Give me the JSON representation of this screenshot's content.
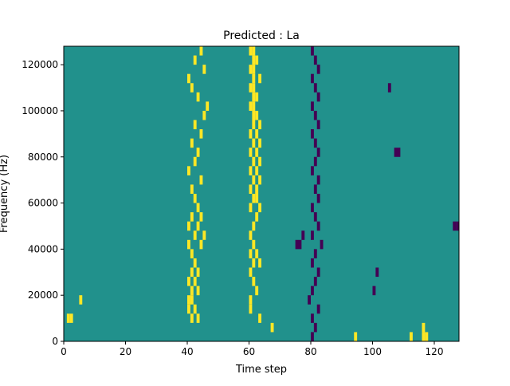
{
  "chart_data": {
    "type": "heatmap",
    "title": "Predicted : La",
    "xlabel": "Time step",
    "ylabel": "Frequency (Hz)",
    "xlim": [
      0,
      128
    ],
    "ylim": [
      0,
      128000
    ],
    "x_ticks": [
      0,
      20,
      40,
      60,
      80,
      100,
      120
    ],
    "y_ticks": [
      0,
      20000,
      40000,
      60000,
      80000,
      100000,
      120000
    ],
    "x_tick_labels": [
      "0",
      "20",
      "40",
      "60",
      "80",
      "100",
      "120"
    ],
    "y_tick_labels": [
      "0",
      "20000",
      "40000",
      "60000",
      "80000",
      "100000",
      "120000"
    ],
    "grid": false,
    "n_time_steps": 128,
    "n_freq_bins": 32,
    "bin_height_hz": 4000,
    "values_legend": {
      "low": -1,
      "background": 0,
      "high": 1
    },
    "colors": {
      "low": "#440154",
      "background": "#21918c",
      "high": "#fde725"
    },
    "cells": [
      {
        "t": 116,
        "f": 0,
        "v": 1
      },
      {
        "t": 94,
        "f": 0,
        "v": 1
      },
      {
        "t": 112,
        "f": 0,
        "v": 1
      },
      {
        "t": 117,
        "f": 0,
        "v": 1
      },
      {
        "t": 116,
        "f": 1,
        "v": 1
      },
      {
        "t": 67,
        "f": 1,
        "v": 1
      },
      {
        "t": 41,
        "f": 2,
        "v": 1
      },
      {
        "t": 43,
        "f": 2,
        "v": 1
      },
      {
        "t": 63,
        "f": 2,
        "v": 1
      },
      {
        "t": 1,
        "f": 2,
        "v": 1
      },
      {
        "t": 2,
        "f": 2,
        "v": 1
      },
      {
        "t": 40,
        "f": 3,
        "v": 1
      },
      {
        "t": 42,
        "f": 3,
        "v": 1
      },
      {
        "t": 60,
        "f": 3,
        "v": 1
      },
      {
        "t": 5,
        "f": 4,
        "v": 1
      },
      {
        "t": 40,
        "f": 4,
        "v": 1
      },
      {
        "t": 41,
        "f": 4,
        "v": 1
      },
      {
        "t": 60,
        "f": 4,
        "v": 1
      },
      {
        "t": 62,
        "f": 5,
        "v": 1
      },
      {
        "t": 41,
        "f": 5,
        "v": 1
      },
      {
        "t": 43,
        "f": 5,
        "v": 1
      },
      {
        "t": 40,
        "f": 6,
        "v": 1
      },
      {
        "t": 42,
        "f": 6,
        "v": 1
      },
      {
        "t": 61,
        "f": 6,
        "v": 1
      },
      {
        "t": 41,
        "f": 7,
        "v": 1
      },
      {
        "t": 43,
        "f": 7,
        "v": 1
      },
      {
        "t": 60,
        "f": 7,
        "v": 1
      },
      {
        "t": 61,
        "f": 8,
        "v": 1
      },
      {
        "t": 63,
        "f": 8,
        "v": 1
      },
      {
        "t": 42,
        "f": 8,
        "v": 1
      },
      {
        "t": 60,
        "f": 9,
        "v": 1
      },
      {
        "t": 62,
        "f": 9,
        "v": 1
      },
      {
        "t": 41,
        "f": 9,
        "v": 1
      },
      {
        "t": 44,
        "f": 10,
        "v": 1
      },
      {
        "t": 40,
        "f": 10,
        "v": 1
      },
      {
        "t": 61,
        "f": 10,
        "v": 1
      },
      {
        "t": 42,
        "f": 11,
        "v": 1
      },
      {
        "t": 45,
        "f": 11,
        "v": 1
      },
      {
        "t": 60,
        "f": 11,
        "v": 1
      },
      {
        "t": 40,
        "f": 12,
        "v": 1
      },
      {
        "t": 43,
        "f": 12,
        "v": 1
      },
      {
        "t": 61,
        "f": 12,
        "v": 1
      },
      {
        "t": 41,
        "f": 13,
        "v": 1
      },
      {
        "t": 44,
        "f": 13,
        "v": 1
      },
      {
        "t": 62,
        "f": 13,
        "v": 1
      },
      {
        "t": 43,
        "f": 14,
        "v": 1
      },
      {
        "t": 60,
        "f": 14,
        "v": 1
      },
      {
        "t": 63,
        "f": 14,
        "v": 1
      },
      {
        "t": 42,
        "f": 15,
        "v": 1
      },
      {
        "t": 61,
        "f": 15,
        "v": 1
      },
      {
        "t": 62,
        "f": 15,
        "v": 1
      },
      {
        "t": 60,
        "f": 16,
        "v": 1
      },
      {
        "t": 62,
        "f": 16,
        "v": 1
      },
      {
        "t": 41,
        "f": 16,
        "v": 1
      },
      {
        "t": 61,
        "f": 17,
        "v": 1
      },
      {
        "t": 63,
        "f": 17,
        "v": 1
      },
      {
        "t": 44,
        "f": 17,
        "v": 1
      },
      {
        "t": 60,
        "f": 18,
        "v": 1
      },
      {
        "t": 62,
        "f": 18,
        "v": 1
      },
      {
        "t": 40,
        "f": 18,
        "v": 1
      },
      {
        "t": 61,
        "f": 19,
        "v": 1
      },
      {
        "t": 63,
        "f": 19,
        "v": 1
      },
      {
        "t": 42,
        "f": 19,
        "v": 1
      },
      {
        "t": 60,
        "f": 20,
        "v": 1
      },
      {
        "t": 62,
        "f": 20,
        "v": 1
      },
      {
        "t": 43,
        "f": 20,
        "v": 1
      },
      {
        "t": 61,
        "f": 21,
        "v": 1
      },
      {
        "t": 63,
        "f": 21,
        "v": 1
      },
      {
        "t": 41,
        "f": 21,
        "v": 1
      },
      {
        "t": 60,
        "f": 22,
        "v": 1
      },
      {
        "t": 62,
        "f": 22,
        "v": 1
      },
      {
        "t": 44,
        "f": 22,
        "v": 1
      },
      {
        "t": 61,
        "f": 23,
        "v": 1
      },
      {
        "t": 63,
        "f": 23,
        "v": 1
      },
      {
        "t": 42,
        "f": 23,
        "v": 1
      },
      {
        "t": 62,
        "f": 24,
        "v": 1
      },
      {
        "t": 61,
        "f": 24,
        "v": 1
      },
      {
        "t": 45,
        "f": 24,
        "v": 1
      },
      {
        "t": 61,
        "f": 25,
        "v": 1
      },
      {
        "t": 60,
        "f": 25,
        "v": 1
      },
      {
        "t": 46,
        "f": 25,
        "v": 1
      },
      {
        "t": 61,
        "f": 26,
        "v": 1
      },
      {
        "t": 62,
        "f": 26,
        "v": 1
      },
      {
        "t": 43,
        "f": 26,
        "v": 1
      },
      {
        "t": 61,
        "f": 27,
        "v": 1
      },
      {
        "t": 60,
        "f": 27,
        "v": 1
      },
      {
        "t": 41,
        "f": 27,
        "v": 1
      },
      {
        "t": 61,
        "f": 28,
        "v": 1
      },
      {
        "t": 63,
        "f": 28,
        "v": 1
      },
      {
        "t": 40,
        "f": 28,
        "v": 1
      },
      {
        "t": 60,
        "f": 29,
        "v": 1
      },
      {
        "t": 61,
        "f": 29,
        "v": 1
      },
      {
        "t": 45,
        "f": 29,
        "v": 1
      },
      {
        "t": 61,
        "f": 30,
        "v": 1
      },
      {
        "t": 62,
        "f": 30,
        "v": 1
      },
      {
        "t": 42,
        "f": 30,
        "v": 1
      },
      {
        "t": 60,
        "f": 31,
        "v": 1
      },
      {
        "t": 61,
        "f": 31,
        "v": 1
      },
      {
        "t": 44,
        "f": 31,
        "v": 1
      },
      {
        "t": 80,
        "f": 0,
        "v": -1
      },
      {
        "t": 81,
        "f": 1,
        "v": -1
      },
      {
        "t": 80,
        "f": 2,
        "v": -1
      },
      {
        "t": 82,
        "f": 3,
        "v": -1
      },
      {
        "t": 79,
        "f": 4,
        "v": -1
      },
      {
        "t": 80,
        "f": 5,
        "v": -1
      },
      {
        "t": 81,
        "f": 6,
        "v": -1
      },
      {
        "t": 82,
        "f": 7,
        "v": -1
      },
      {
        "t": 80,
        "f": 8,
        "v": -1
      },
      {
        "t": 81,
        "f": 9,
        "v": -1
      },
      {
        "t": 83,
        "f": 10,
        "v": -1
      },
      {
        "t": 80,
        "f": 11,
        "v": -1
      },
      {
        "t": 82,
        "f": 12,
        "v": -1
      },
      {
        "t": 81,
        "f": 13,
        "v": -1
      },
      {
        "t": 80,
        "f": 14,
        "v": -1
      },
      {
        "t": 82,
        "f": 15,
        "v": -1
      },
      {
        "t": 81,
        "f": 16,
        "v": -1
      },
      {
        "t": 82,
        "f": 17,
        "v": -1
      },
      {
        "t": 80,
        "f": 18,
        "v": -1
      },
      {
        "t": 81,
        "f": 19,
        "v": -1
      },
      {
        "t": 82,
        "f": 20,
        "v": -1
      },
      {
        "t": 81,
        "f": 21,
        "v": -1
      },
      {
        "t": 80,
        "f": 22,
        "v": -1
      },
      {
        "t": 82,
        "f": 23,
        "v": -1
      },
      {
        "t": 81,
        "f": 24,
        "v": -1
      },
      {
        "t": 80,
        "f": 25,
        "v": -1
      },
      {
        "t": 82,
        "f": 26,
        "v": -1
      },
      {
        "t": 81,
        "f": 27,
        "v": -1
      },
      {
        "t": 80,
        "f": 28,
        "v": -1
      },
      {
        "t": 82,
        "f": 29,
        "v": -1
      },
      {
        "t": 81,
        "f": 30,
        "v": -1
      },
      {
        "t": 80,
        "f": 31,
        "v": -1
      },
      {
        "t": 75,
        "f": 10,
        "v": -1
      },
      {
        "t": 76,
        "f": 10,
        "v": -1
      },
      {
        "t": 77,
        "f": 11,
        "v": -1
      },
      {
        "t": 100,
        "f": 5,
        "v": -1
      },
      {
        "t": 101,
        "f": 7,
        "v": -1
      },
      {
        "t": 127,
        "f": 12,
        "v": -1
      },
      {
        "t": 126,
        "f": 12,
        "v": -1
      },
      {
        "t": 107,
        "f": 20,
        "v": -1
      },
      {
        "t": 108,
        "f": 20,
        "v": -1
      },
      {
        "t": 105,
        "f": 27,
        "v": -1
      }
    ]
  }
}
